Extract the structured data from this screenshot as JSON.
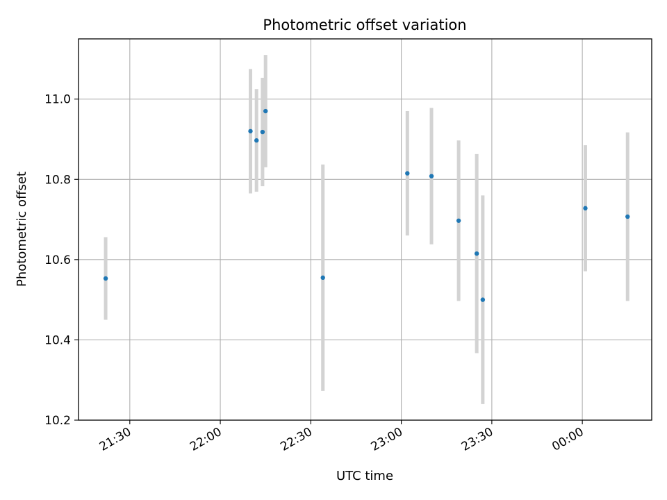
{
  "chart_data": {
    "type": "scatter",
    "title": "Photometric offset variation",
    "xlabel": "UTC time",
    "ylabel": "Photometric offset",
    "grid": true,
    "xlim": [
      "21:13",
      "00:23"
    ],
    "ylim": [
      10.2,
      11.15
    ],
    "x_ticks": [
      "21:30",
      "22:00",
      "22:30",
      "23:00",
      "23:30",
      "00:00"
    ],
    "y_ticks": [
      "10.2",
      "10.4",
      "10.6",
      "10.8",
      "11.0"
    ],
    "marker_color": "#1f77b4",
    "errorbar_color": "#d3d3d3",
    "points": [
      {
        "x": "21:22",
        "y": 10.553,
        "err": 0.103
      },
      {
        "x": "22:10",
        "y": 10.92,
        "err": 0.155
      },
      {
        "x": "22:12",
        "y": 10.897,
        "err": 0.128
      },
      {
        "x": "22:14",
        "y": 10.918,
        "err": 0.135
      },
      {
        "x": "22:15",
        "y": 10.97,
        "err": 0.14
      },
      {
        "x": "22:34",
        "y": 10.555,
        "err": 0.282
      },
      {
        "x": "23:02",
        "y": 10.815,
        "err": 0.155
      },
      {
        "x": "23:10",
        "y": 10.808,
        "err": 0.17
      },
      {
        "x": "23:19",
        "y": 10.697,
        "err": 0.2
      },
      {
        "x": "23:25",
        "y": 10.615,
        "err": 0.248
      },
      {
        "x": "23:27",
        "y": 10.5,
        "err": 0.26
      },
      {
        "x": "00:01",
        "y": 10.728,
        "err": 0.157
      },
      {
        "x": "00:15",
        "y": 10.707,
        "err": 0.21
      }
    ]
  }
}
